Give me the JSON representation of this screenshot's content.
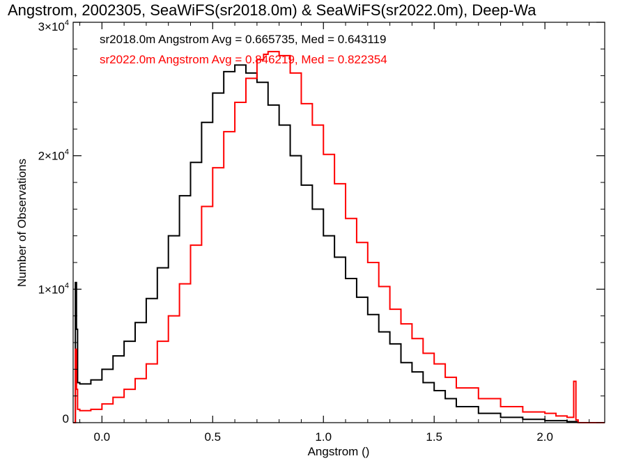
{
  "chart_data": {
    "type": "line",
    "title": "Angstrom, 2002305, SeaWiFS(sr2018.0m) & SeaWiFS(sr2022.0m), Deep-Wa",
    "xlabel": "Angstrom ()",
    "ylabel": "Number of Observations",
    "xlim": [
      -0.13,
      2.27
    ],
    "ylim": [
      0,
      30000
    ],
    "x_ticks": [
      {
        "value": 0.0,
        "label": "0.0"
      },
      {
        "value": 0.5,
        "label": "0.5"
      },
      {
        "value": 1.0,
        "label": "1.0"
      },
      {
        "value": 1.5,
        "label": "1.5"
      },
      {
        "value": 2.0,
        "label": "2.0"
      }
    ],
    "y_ticks": [
      {
        "value": 0,
        "mant": "0",
        "exp": ""
      },
      {
        "value": 10000,
        "mant": "1×10",
        "exp": "4"
      },
      {
        "value": 20000,
        "mant": "2×10",
        "exp": "4"
      },
      {
        "value": 30000,
        "mant": "3×10",
        "exp": "4"
      }
    ],
    "grid": false,
    "step": true,
    "annotations": [
      {
        "text": "sr2018.0m Angstrom Avg = 0.665735, Med = 0.643119",
        "color": "#000000"
      },
      {
        "text": "sr2022.0m Angstrom Avg = 0.846219, Med = 0.822354",
        "color": "#ff0000"
      }
    ],
    "series": [
      {
        "color": "#000000",
        "x": [
          -0.13,
          -0.12,
          -0.115,
          -0.11,
          -0.1,
          -0.05,
          0.0,
          0.05,
          0.1,
          0.15,
          0.2,
          0.25,
          0.3,
          0.35,
          0.4,
          0.45,
          0.5,
          0.55,
          0.6,
          0.62,
          0.65,
          0.7,
          0.75,
          0.8,
          0.85,
          0.9,
          0.95,
          1.0,
          1.05,
          1.1,
          1.15,
          1.2,
          1.25,
          1.3,
          1.35,
          1.4,
          1.45,
          1.5,
          1.55,
          1.6,
          1.7,
          1.8,
          1.9,
          2.0,
          2.1,
          2.15
        ],
        "y": [
          0,
          10500,
          7000,
          3000,
          2900,
          3200,
          4000,
          5000,
          6100,
          7500,
          9300,
          11600,
          14000,
          17000,
          19500,
          22500,
          24700,
          26300,
          26800,
          26800,
          26200,
          25500,
          23800,
          22300,
          20000,
          17800,
          16000,
          14000,
          12400,
          10800,
          9400,
          8100,
          6800,
          5900,
          4500,
          3800,
          3000,
          2400,
          1800,
          1200,
          700,
          400,
          250,
          150,
          80,
          30
        ]
      },
      {
        "color": "#ff0000",
        "x": [
          -0.13,
          -0.12,
          -0.115,
          -0.11,
          -0.1,
          -0.05,
          0.0,
          0.05,
          0.1,
          0.15,
          0.2,
          0.25,
          0.3,
          0.35,
          0.4,
          0.45,
          0.5,
          0.55,
          0.6,
          0.65,
          0.7,
          0.73,
          0.75,
          0.8,
          0.85,
          0.9,
          0.95,
          1.0,
          1.05,
          1.1,
          1.15,
          1.2,
          1.25,
          1.3,
          1.35,
          1.4,
          1.45,
          1.5,
          1.55,
          1.6,
          1.7,
          1.8,
          1.9,
          2.0,
          2.05,
          2.1,
          2.13,
          2.14,
          2.15,
          2.27
        ],
        "y": [
          0,
          5500,
          2500,
          1000,
          900,
          1000,
          1400,
          1900,
          2500,
          3300,
          4400,
          6100,
          8000,
          10400,
          13300,
          16200,
          19100,
          21800,
          24000,
          25800,
          27200,
          27600,
          27800,
          27500,
          26200,
          23900,
          22300,
          20100,
          17900,
          15300,
          13500,
          12000,
          10200,
          8500,
          7400,
          6300,
          5200,
          4400,
          3400,
          2600,
          1800,
          1200,
          800,
          700,
          500,
          400,
          3100,
          200,
          0,
          0
        ]
      }
    ]
  }
}
